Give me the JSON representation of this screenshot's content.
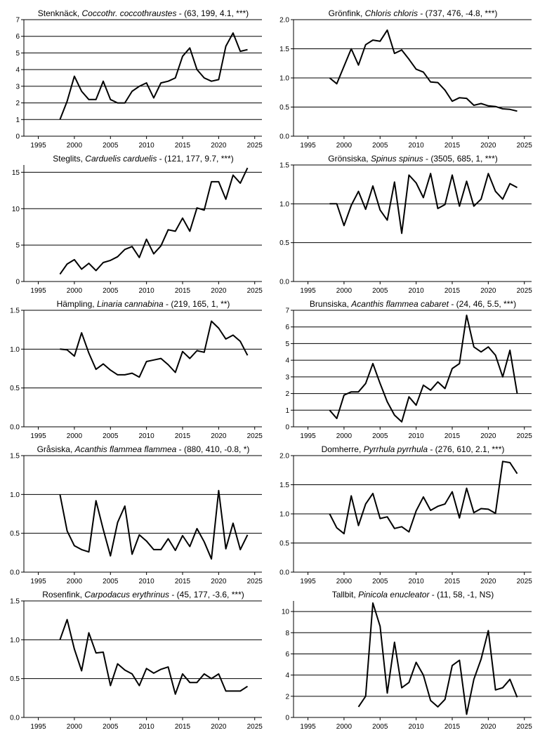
{
  "chart_data": [
    {
      "type": "line",
      "title_common": "Stenknäck",
      "title_latin": "Coccothr. coccothraustes",
      "title_stats": " - (63, 199, 4.1, ***)",
      "ylim": [
        0,
        7
      ],
      "yticks": [
        "0",
        "1",
        "2",
        "3",
        "4",
        "5",
        "6",
        "7"
      ],
      "xlim": [
        1993,
        2026
      ],
      "xticks": [
        "1995",
        "2000",
        "2005",
        "2010",
        "2015",
        "2020",
        "2025"
      ],
      "grid": "horizontal",
      "x": [
        1998,
        1999,
        2000,
        2001,
        2002,
        2003,
        2004,
        2005,
        2006,
        2007,
        2008,
        2009,
        2010,
        2011,
        2012,
        2013,
        2014,
        2015,
        2016,
        2017,
        2018,
        2019,
        2020,
        2021,
        2022,
        2023,
        2024
      ],
      "values": [
        1.0,
        2.1,
        3.6,
        2.7,
        2.2,
        2.2,
        3.3,
        2.2,
        2.0,
        2.0,
        2.7,
        3.0,
        3.2,
        2.3,
        3.2,
        3.3,
        3.5,
        4.8,
        5.3,
        4.0,
        3.5,
        3.3,
        3.4,
        5.4,
        6.2,
        5.1,
        5.2
      ]
    },
    {
      "type": "line",
      "title_common": "Grönfink",
      "title_latin": "Chloris chloris",
      "title_stats": " - (737, 476, -4.8, ***)",
      "ylim": [
        0,
        2
      ],
      "yticks": [
        "0.0",
        "0.5",
        "1.0",
        "1.5",
        "2.0"
      ],
      "xlim": [
        1993,
        2026
      ],
      "xticks": [
        "1995",
        "2000",
        "2005",
        "2010",
        "2015",
        "2020",
        "2025"
      ],
      "grid": "horizontal",
      "x": [
        1998,
        1999,
        2000,
        2001,
        2002,
        2003,
        2004,
        2005,
        2006,
        2007,
        2008,
        2009,
        2010,
        2011,
        2012,
        2013,
        2014,
        2015,
        2016,
        2017,
        2018,
        2019,
        2020,
        2021,
        2022,
        2023,
        2024
      ],
      "values": [
        1.0,
        0.9,
        1.2,
        1.5,
        1.22,
        1.57,
        1.65,
        1.63,
        1.82,
        1.42,
        1.48,
        1.32,
        1.15,
        1.1,
        0.93,
        0.92,
        0.79,
        0.6,
        0.66,
        0.65,
        0.53,
        0.56,
        0.52,
        0.51,
        0.47,
        0.46,
        0.43
      ]
    },
    {
      "type": "line",
      "title_common": "Steglits",
      "title_latin": "Carduelis carduelis",
      "title_stats": " - (121, 177, 9.7, ***)",
      "ylim": [
        0,
        16
      ],
      "yticks": [
        "0",
        "5",
        "10",
        "15"
      ],
      "xlim": [
        1993,
        2026
      ],
      "xticks": [
        "1995",
        "2000",
        "2005",
        "2010",
        "2015",
        "2020",
        "2025"
      ],
      "grid": "horizontal",
      "x": [
        1998,
        1999,
        2000,
        2001,
        2002,
        2003,
        2004,
        2005,
        2006,
        2007,
        2008,
        2009,
        2010,
        2011,
        2012,
        2013,
        2014,
        2015,
        2016,
        2017,
        2018,
        2019,
        2020,
        2021,
        2022,
        2023,
        2024
      ],
      "values": [
        1.0,
        2.4,
        3.0,
        1.7,
        2.5,
        1.5,
        2.6,
        2.9,
        3.4,
        4.4,
        4.8,
        3.3,
        5.8,
        3.8,
        4.9,
        7.1,
        6.9,
        8.7,
        6.9,
        10.1,
        9.8,
        13.7,
        13.7,
        11.3,
        14.6,
        13.5,
        15.6
      ]
    },
    {
      "type": "line",
      "title_common": "Grönsiska",
      "title_latin": "Spinus spinus",
      "title_stats": " - (3505, 685, 1, ***)",
      "ylim": [
        0,
        1.5
      ],
      "yticks": [
        "0.0",
        "0.5",
        "1.0",
        "1.5"
      ],
      "xlim": [
        1993,
        2026
      ],
      "xticks": [
        "1995",
        "2000",
        "2005",
        "2010",
        "2015",
        "2020",
        "2025"
      ],
      "grid": "horizontal",
      "x": [
        1998,
        1999,
        2000,
        2001,
        2002,
        2003,
        2004,
        2005,
        2006,
        2007,
        2008,
        2009,
        2010,
        2011,
        2012,
        2013,
        2014,
        2015,
        2016,
        2017,
        2018,
        2019,
        2020,
        2021,
        2022,
        2023,
        2024
      ],
      "values": [
        1.0,
        1.0,
        0.72,
        0.98,
        1.16,
        0.93,
        1.23,
        0.92,
        0.79,
        1.28,
        0.62,
        1.37,
        1.27,
        1.08,
        1.39,
        0.94,
        0.99,
        1.37,
        0.97,
        1.29,
        0.97,
        1.06,
        1.39,
        1.16,
        1.06,
        1.26,
        1.21
      ]
    },
    {
      "type": "line",
      "title_common": "Hämpling",
      "title_latin": "Linaria cannabina",
      "title_stats": " - (219, 165, 1, **)",
      "ylim": [
        0,
        1.5
      ],
      "yticks": [
        "0.0",
        "0.5",
        "1.0",
        "1.5"
      ],
      "xlim": [
        1993,
        2026
      ],
      "xticks": [
        "1995",
        "2000",
        "2005",
        "2010",
        "2015",
        "2020",
        "2025"
      ],
      "grid": "horizontal",
      "x": [
        1998,
        1999,
        2000,
        2001,
        2002,
        2003,
        2004,
        2005,
        2006,
        2007,
        2008,
        2009,
        2010,
        2011,
        2012,
        2013,
        2014,
        2015,
        2016,
        2017,
        2018,
        2019,
        2020,
        2021,
        2022,
        2023,
        2024
      ],
      "values": [
        1.0,
        0.99,
        0.91,
        1.21,
        0.95,
        0.74,
        0.81,
        0.73,
        0.67,
        0.67,
        0.69,
        0.64,
        0.84,
        0.86,
        0.88,
        0.8,
        0.7,
        0.97,
        0.88,
        0.98,
        0.96,
        1.36,
        1.27,
        1.13,
        1.18,
        1.1,
        0.92
      ]
    },
    {
      "type": "line",
      "title_common": "Brunsiska",
      "title_latin": "Acanthis flammea cabaret",
      "title_stats": " - (24, 46, 5.5, ***)",
      "ylim": [
        0,
        7
      ],
      "yticks": [
        "0",
        "1",
        "2",
        "3",
        "4",
        "5",
        "6",
        "7"
      ],
      "xlim": [
        1993,
        2026
      ],
      "xticks": [
        "1995",
        "2000",
        "2005",
        "2010",
        "2015",
        "2020",
        "2025"
      ],
      "grid": "horizontal",
      "x": [
        1998,
        1999,
        2000,
        2001,
        2002,
        2003,
        2004,
        2005,
        2006,
        2007,
        2008,
        2009,
        2010,
        2011,
        2012,
        2013,
        2014,
        2015,
        2016,
        2017,
        2018,
        2019,
        2020,
        2021,
        2022,
        2023,
        2024
      ],
      "values": [
        1.0,
        0.5,
        1.9,
        2.1,
        2.1,
        2.6,
        3.8,
        2.6,
        1.5,
        0.7,
        0.3,
        1.8,
        1.3,
        2.5,
        2.2,
        2.7,
        2.3,
        3.5,
        3.8,
        6.7,
        4.8,
        4.5,
        4.8,
        4.3,
        3.0,
        4.6,
        2.0
      ]
    },
    {
      "type": "line",
      "title_common": "Gråsiska",
      "title_latin": "Acanthis flammea flammea",
      "title_stats": " - (880, 410, -0.8, *)",
      "ylim": [
        0,
        1.5
      ],
      "yticks": [
        "0.0",
        "0.5",
        "1.0",
        "1.5"
      ],
      "xlim": [
        1993,
        2026
      ],
      "xticks": [
        "1995",
        "2000",
        "2005",
        "2010",
        "2015",
        "2020",
        "2025"
      ],
      "grid": "horizontal",
      "x": [
        1998,
        1999,
        2000,
        2001,
        2002,
        2003,
        2004,
        2005,
        2006,
        2007,
        2008,
        2009,
        2010,
        2011,
        2012,
        2013,
        2014,
        2015,
        2016,
        2017,
        2018,
        2019,
        2020,
        2021,
        2022,
        2023,
        2024
      ],
      "values": [
        1.0,
        0.53,
        0.34,
        0.29,
        0.26,
        0.92,
        0.55,
        0.21,
        0.64,
        0.85,
        0.23,
        0.48,
        0.4,
        0.29,
        0.29,
        0.43,
        0.28,
        0.47,
        0.33,
        0.56,
        0.39,
        0.17,
        1.05,
        0.3,
        0.63,
        0.29,
        0.48
      ]
    },
    {
      "type": "line",
      "title_common": "Domherre",
      "title_latin": "Pyrrhula pyrrhula",
      "title_stats": " - (276, 610, 2.1, ***)",
      "ylim": [
        0,
        2
      ],
      "yticks": [
        "0.0",
        "0.5",
        "1.0",
        "1.5",
        "2.0"
      ],
      "xlim": [
        1993,
        2026
      ],
      "xticks": [
        "1995",
        "2000",
        "2005",
        "2010",
        "2015",
        "2020",
        "2025"
      ],
      "grid": "horizontal",
      "x": [
        1998,
        1999,
        2000,
        2001,
        2002,
        2003,
        2004,
        2005,
        2006,
        2007,
        2008,
        2009,
        2010,
        2011,
        2012,
        2013,
        2014,
        2015,
        2016,
        2017,
        2018,
        2019,
        2020,
        2021,
        2022,
        2023,
        2024
      ],
      "values": [
        1.0,
        0.76,
        0.66,
        1.31,
        0.8,
        1.17,
        1.35,
        0.92,
        0.95,
        0.75,
        0.78,
        0.69,
        1.05,
        1.29,
        1.06,
        1.13,
        1.17,
        1.38,
        0.93,
        1.44,
        1.02,
        1.09,
        1.08,
        1.01,
        1.9,
        1.88,
        1.69
      ]
    },
    {
      "type": "line",
      "title_common": "Rosenfink",
      "title_latin": "Carpodacus erythrinus",
      "title_stats": " - (45, 177, -3.6, ***)",
      "ylim": [
        0,
        1.5
      ],
      "yticks": [
        "0.0",
        "0.5",
        "1.0",
        "1.5"
      ],
      "xlim": [
        1993,
        2026
      ],
      "xticks": [
        "1995",
        "2000",
        "2005",
        "2010",
        "2015",
        "2020",
        "2025"
      ],
      "grid": "horizontal",
      "x": [
        1998,
        1999,
        2000,
        2001,
        2002,
        2003,
        2004,
        2005,
        2006,
        2007,
        2008,
        2009,
        2010,
        2011,
        2012,
        2013,
        2014,
        2015,
        2016,
        2017,
        2018,
        2019,
        2020,
        2021,
        2022,
        2023,
        2024
      ],
      "values": [
        1.0,
        1.26,
        0.88,
        0.6,
        1.09,
        0.83,
        0.84,
        0.41,
        0.69,
        0.61,
        0.56,
        0.41,
        0.63,
        0.57,
        0.62,
        0.65,
        0.3,
        0.56,
        0.45,
        0.45,
        0.56,
        0.5,
        0.56,
        0.34,
        0.34,
        0.34,
        0.4
      ]
    },
    {
      "type": "line",
      "title_common": "Tallbit",
      "title_latin": "Pinicola enucleator",
      "title_stats": " - (11, 58, -1, NS)",
      "ylim": [
        0,
        11
      ],
      "yticks": [
        "0",
        "2",
        "4",
        "6",
        "8",
        "10"
      ],
      "xlim": [
        1993,
        2026
      ],
      "xticks": [
        "1995",
        "2000",
        "2005",
        "2010",
        "2015",
        "2020",
        "2025"
      ],
      "grid": "horizontal",
      "x": [
        2002,
        2003,
        2004,
        2005,
        2006,
        2007,
        2008,
        2009,
        2010,
        2011,
        2012,
        2013,
        2014,
        2015,
        2016,
        2017,
        2018,
        2019,
        2020,
        2021,
        2022,
        2023,
        2024
      ],
      "values": [
        1.0,
        2.0,
        10.8,
        8.6,
        2.3,
        7.1,
        2.8,
        3.3,
        5.2,
        4.0,
        1.6,
        1.0,
        1.7,
        4.9,
        5.4,
        0.3,
        3.6,
        5.5,
        8.2,
        2.6,
        2.8,
        3.6,
        1.9
      ]
    }
  ]
}
